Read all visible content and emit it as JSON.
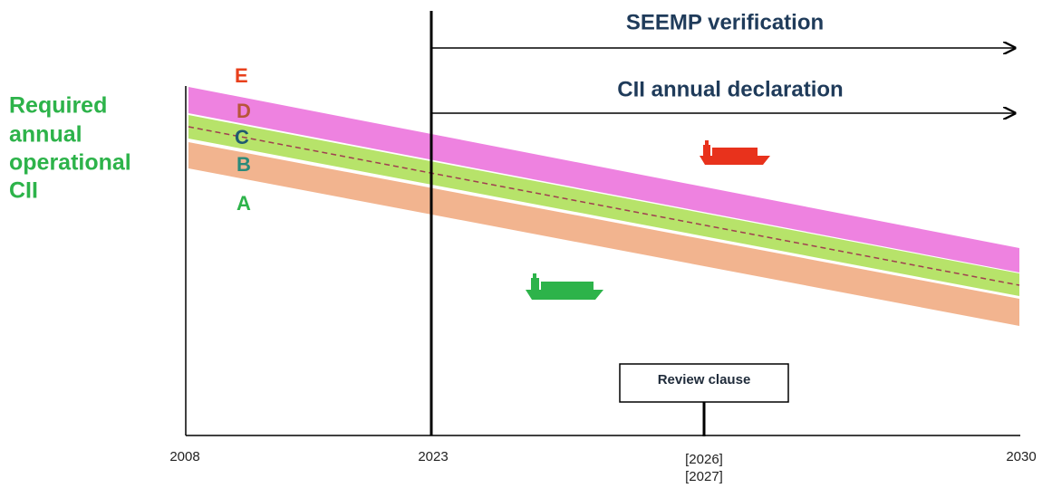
{
  "y_axis_title": [
    "Required",
    "annual",
    "operational",
    "CII"
  ],
  "ratings": [
    "E",
    "D",
    "C",
    "B",
    "A"
  ],
  "arrows": [
    {
      "label": "SEEMP verification"
    },
    {
      "label": "CII annual declaration"
    }
  ],
  "review_clause": "Review clause",
  "x_labels": [
    "2008",
    "2023",
    "[2026]",
    "[2027]",
    "2030"
  ]
}
